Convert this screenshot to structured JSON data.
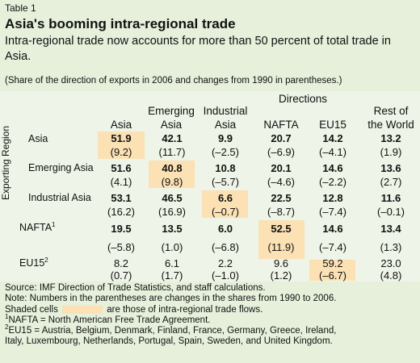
{
  "table_label": "Table 1",
  "title": "Asia's booming intra-regional trade",
  "subtitle": "Intra-regional trade now accounts for more than 50 percent of total trade in Asia.",
  "subnote": "(Share of the direction of exports in 2006 and changes from 1990 in parentheses.)",
  "directions_label": "Directions",
  "exporting_region_label": "Exporting Region",
  "columns": {
    "asia": "Asia",
    "emerging_1": "Emerging",
    "emerging_2": "Asia",
    "industrial_1": "Industrial",
    "industrial_2": "Asia",
    "nafta": "NAFTA",
    "eu15": "EU15",
    "rest_1": "Rest of",
    "rest_2": "the World"
  },
  "rows": {
    "asia": {
      "label": "Asia",
      "values": [
        "51.9",
        "42.1",
        "9.9",
        "20.7",
        "14.2",
        "13.2"
      ],
      "changes": [
        "(9.2)",
        "(11.7)",
        "(–2.5)",
        "(–6.9)",
        "(–4.1)",
        "(1.9)"
      ]
    },
    "emerging": {
      "label": "Emerging Asia",
      "values": [
        "51.6",
        "40.8",
        "10.8",
        "20.1",
        "14.6",
        "13.6"
      ],
      "changes": [
        "(4.1)",
        "(9.8)",
        "(–5.7)",
        "(–4.6)",
        "(–2.2)",
        "(2.7)"
      ]
    },
    "industrial": {
      "label": "Industrial Asia",
      "values": [
        "53.1",
        "46.5",
        "6.6",
        "22.5",
        "12.8",
        "11.6"
      ],
      "changes": [
        "(16.2)",
        "(16.9)",
        "(–0.7)",
        "(–8.7)",
        "(–7.4)",
        "(–0.1)"
      ]
    },
    "nafta": {
      "label": "NAFTA",
      "label_sup": "1",
      "values": [
        "19.5",
        "13.5",
        "6.0",
        "52.5",
        "14.6",
        "13.4"
      ],
      "changes": [
        "(–5.8)",
        "(1.0)",
        "(–6.8)",
        "(11.9)",
        "(–7.4)",
        "(1.3)"
      ]
    },
    "eu15": {
      "label": "EU15",
      "label_sup": "2",
      "values": [
        "8.2",
        "6.1",
        "2.2",
        "9.6",
        "59.2",
        "23.0"
      ],
      "changes": [
        "(0.7)",
        "(1.7)",
        "(–1.0)",
        "(1.2)",
        "(–6.7)",
        "(4.8)"
      ]
    }
  },
  "notes": {
    "source": "Source: IMF Direction of Trade Statistics, and staff calculations.",
    "note": "Note: Numbers in the parentheses are changes in the shares from 1990 to 2006.",
    "shaded_a": "Shaded cells",
    "shaded_b": "are those of intra-regional trade flows.",
    "fn1_sup": "1",
    "fn1": "NAFTA = North American Free Trade Agreement.",
    "fn2_sup": "2",
    "fn2a": "EU15 = Austria, Belgium, Denmark, Finland, France, Germany, Greece, Ireland,",
    "fn2b": "Italy, Luxembourg, Netherlands, Portugal, Spain, Sweden, and United Kingdom."
  },
  "colors": {
    "background": "#e6f0db",
    "table_background": "#eef4e7",
    "highlight": "#fbe1b4"
  }
}
